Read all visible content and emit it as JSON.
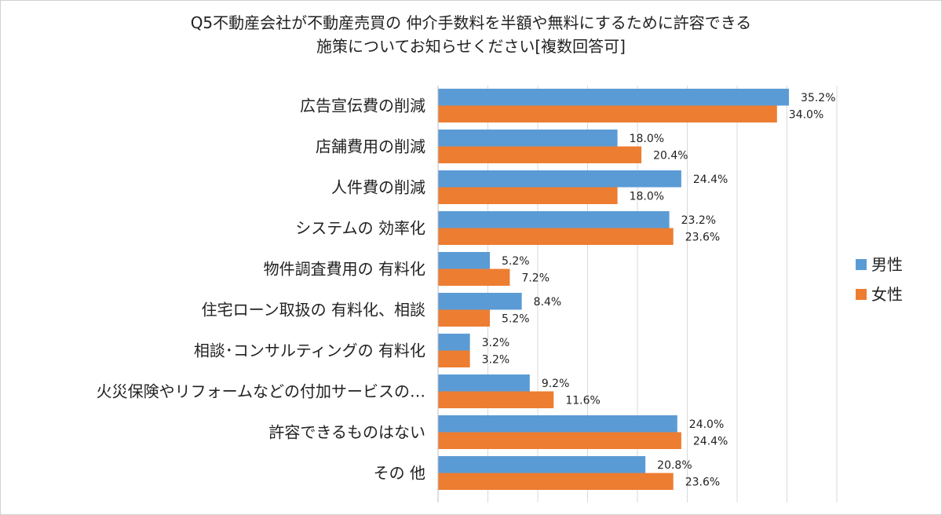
{
  "title_line1": "Q5不動産会社が不動産売買の 仲介手数料を半額や無料にするために許容できる",
  "title_line2": "施策についてお知らせください[複数回答可]",
  "colors": {
    "male": "#5b9bd5",
    "female": "#ed7d31",
    "grid": "#d9d9d9"
  },
  "chart_data": {
    "type": "bar",
    "orientation": "horizontal",
    "categories": [
      "広告宣伝費の削減",
      "店舗費用の削減",
      "人件費の削減",
      "システムの 効率化",
      "物件調査費用の 有料化",
      "住宅ローン取扱の 有料化、相談",
      "相談･コンサルティングの 有料化",
      "火災保険やリフォームなどの付加サービスの…",
      "許容できるものはない",
      "その 他"
    ],
    "series": [
      {
        "name": "男性",
        "values": [
          35.2,
          18.0,
          24.4,
          23.2,
          5.2,
          8.4,
          3.2,
          9.2,
          24.0,
          20.8
        ]
      },
      {
        "name": "女性",
        "values": [
          34.0,
          20.4,
          18.0,
          23.6,
          7.2,
          5.2,
          3.2,
          11.6,
          24.4,
          23.6
        ]
      }
    ],
    "value_labels": {
      "男性": [
        "35.2%",
        "18.0%",
        "24.4%",
        "23.2%",
        "5.2%",
        "8.4%",
        "3.2%",
        "9.2%",
        "24.0%",
        "20.8%"
      ],
      "女性": [
        "34.0%",
        "20.4%",
        "18.0%",
        "23.6%",
        "7.2%",
        "5.2%",
        "3.2%",
        "11.6%",
        "24.4%",
        "23.6%"
      ]
    },
    "xlim": [
      0,
      40
    ],
    "grid": true,
    "legend_position": "right"
  }
}
